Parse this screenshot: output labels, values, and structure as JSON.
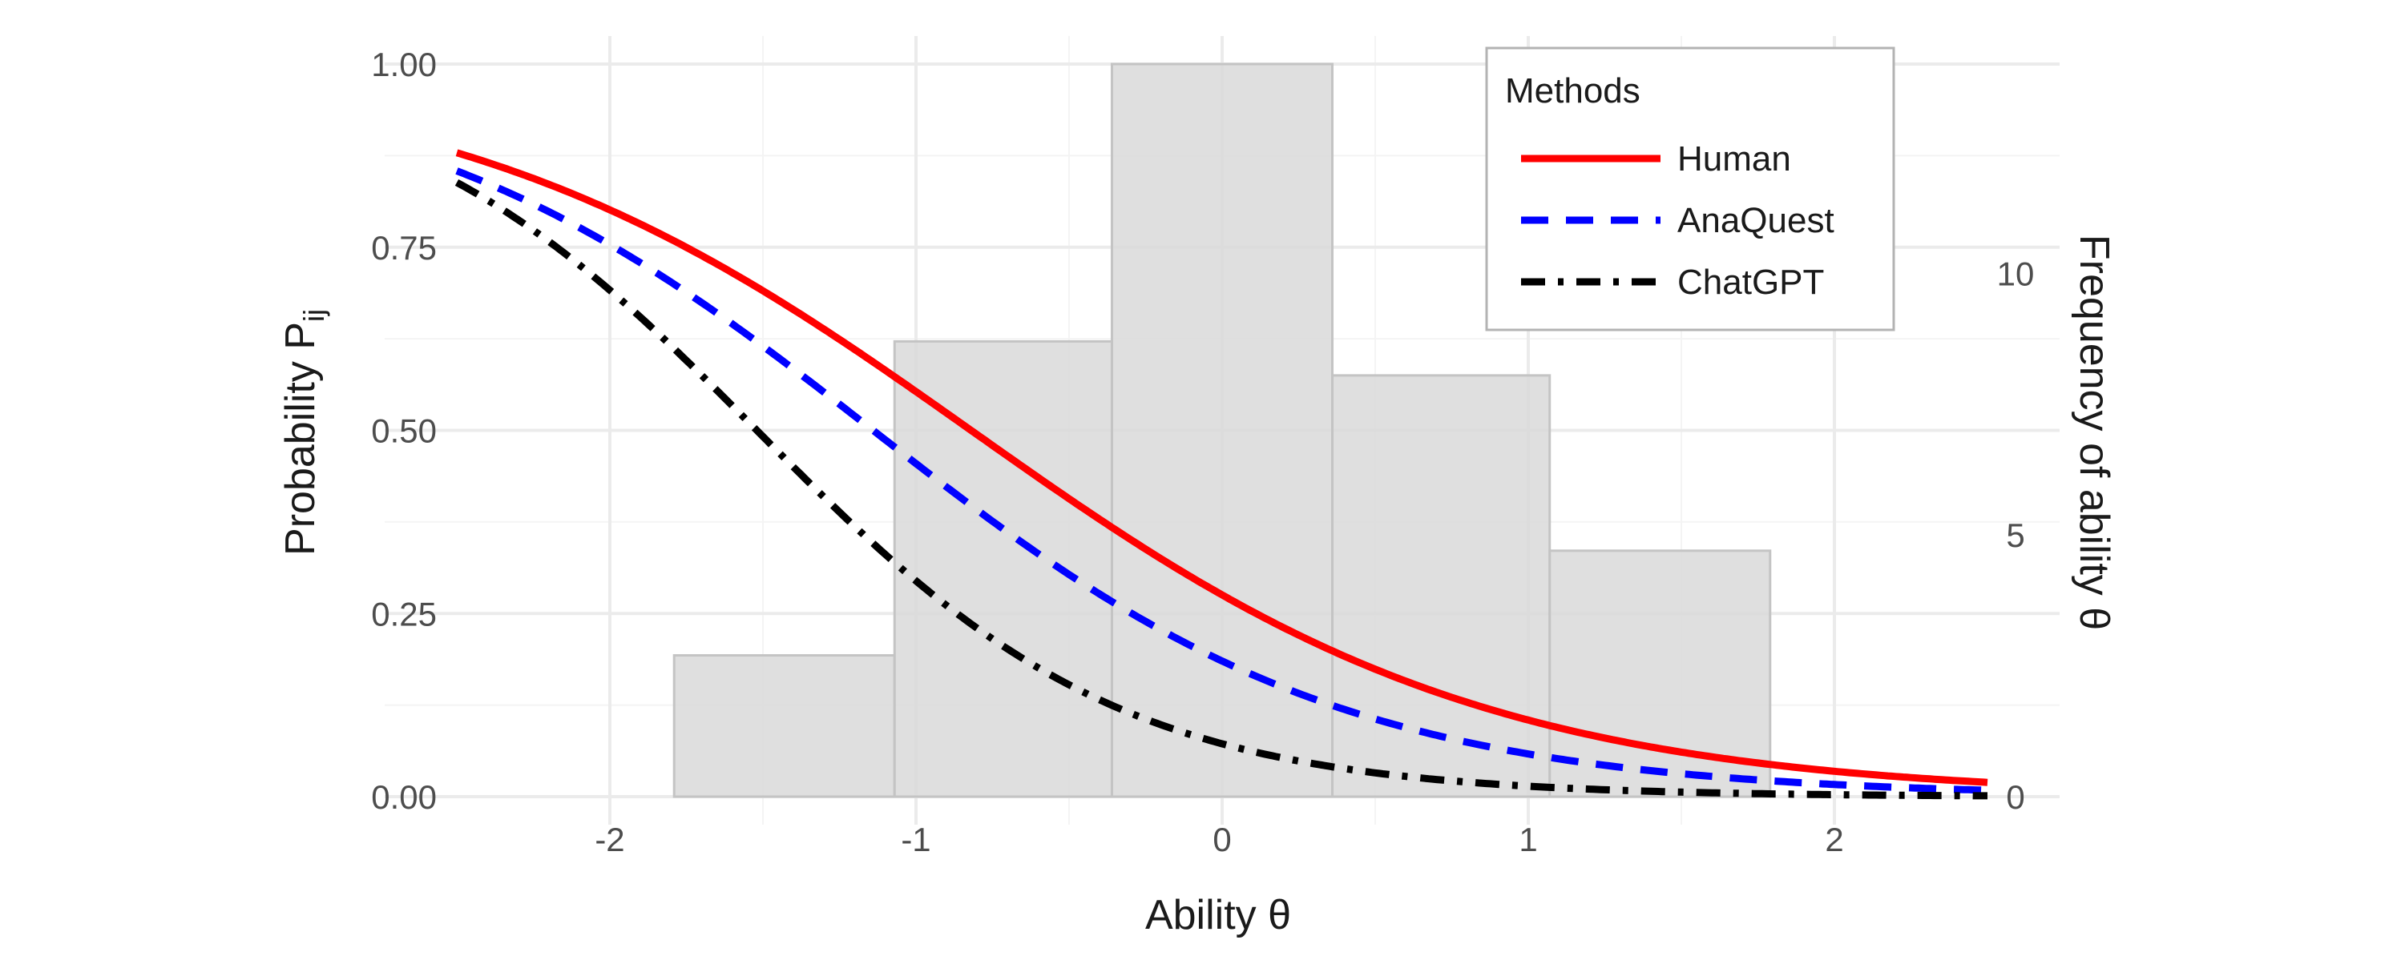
{
  "chart_data": {
    "type": "line",
    "title": "",
    "xlabel": "Ability θ",
    "ylabel": "Probability P",
    "ylabel_sub": "ij",
    "y2label": "Frequency of ability θ",
    "xlim": [
      -2.5,
      2.5
    ],
    "ylim": [
      0,
      1
    ],
    "y2lim": [
      0,
      14
    ],
    "grid": true,
    "x_ticks": [
      -2,
      -1,
      0,
      1,
      2
    ],
    "x_tick_labels": [
      "-2",
      "-1",
      "0",
      "1",
      "2"
    ],
    "y_ticks": [
      0,
      0.25,
      0.5,
      0.75,
      1.0
    ],
    "y_tick_labels": [
      "0.00",
      "0.25",
      "0.50",
      "0.75",
      "1.00"
    ],
    "y2_ticks": [
      0,
      5,
      10
    ],
    "y2_tick_labels": [
      "0",
      "5",
      "10"
    ],
    "legend": {
      "title": "Methods",
      "position": "top-right"
    },
    "series": [
      {
        "name": "Human",
        "color": "#ff0000",
        "dash": "solid",
        "a": 1.18,
        "b": -0.82
      },
      {
        "name": "AnaQuest",
        "color": "#0000ff",
        "dash": "dashed",
        "a": 1.3,
        "b": -1.14
      },
      {
        "name": "ChatGPT",
        "color": "#000000",
        "dash": "dotdash",
        "a": 1.68,
        "b": -1.52
      }
    ],
    "histogram": {
      "color": "#d9d9d9",
      "stroke": "#c4c4c4",
      "opacity": 0.85,
      "bins": [
        {
          "x0": -2.5,
          "x1": -1.79,
          "count": 0
        },
        {
          "x0": -1.79,
          "x1": -1.07,
          "count": 2.7
        },
        {
          "x0": -1.07,
          "x1": -0.36,
          "count": 8.7
        },
        {
          "x0": -0.36,
          "x1": 0.36,
          "count": 14
        },
        {
          "x0": 0.36,
          "x1": 1.07,
          "count": 8.05
        },
        {
          "x0": 1.07,
          "x1": 1.79,
          "count": 4.7
        }
      ]
    }
  }
}
